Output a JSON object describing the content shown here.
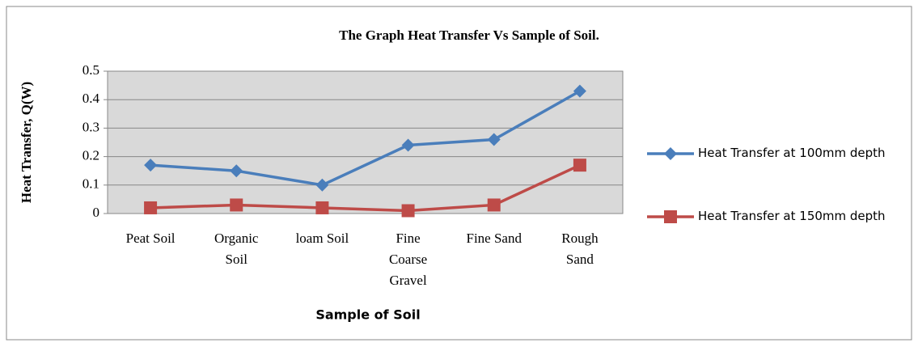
{
  "chart_data": {
    "type": "line",
    "title": "The Graph Heat Transfer Vs Sample of Soil.",
    "x_label": "Sample of Soil",
    "y_label": "Heat Transfer, Q(W)",
    "categories": [
      "Peat Soil",
      "Organic Soil",
      "loam Soil",
      "Fine Coarse Gravel",
      "Fine Sand",
      "Rough Sand"
    ],
    "series": [
      {
        "name": "Heat Transfer at 100mm depth",
        "color": "#4a7ebb",
        "marker": "diamond",
        "values": [
          0.17,
          0.15,
          0.1,
          0.24,
          0.26,
          0.43
        ]
      },
      {
        "name": "Heat Transfer at 150mm depth",
        "color": "#be4b48",
        "marker": "square",
        "values": [
          0.02,
          0.03,
          0.02,
          0.01,
          0.03,
          0.17
        ]
      }
    ],
    "ylim": [
      0,
      0.5
    ],
    "yticks": [
      0,
      0.1,
      0.2,
      0.3,
      0.4,
      0.5
    ],
    "grid": true,
    "legend": "right"
  }
}
